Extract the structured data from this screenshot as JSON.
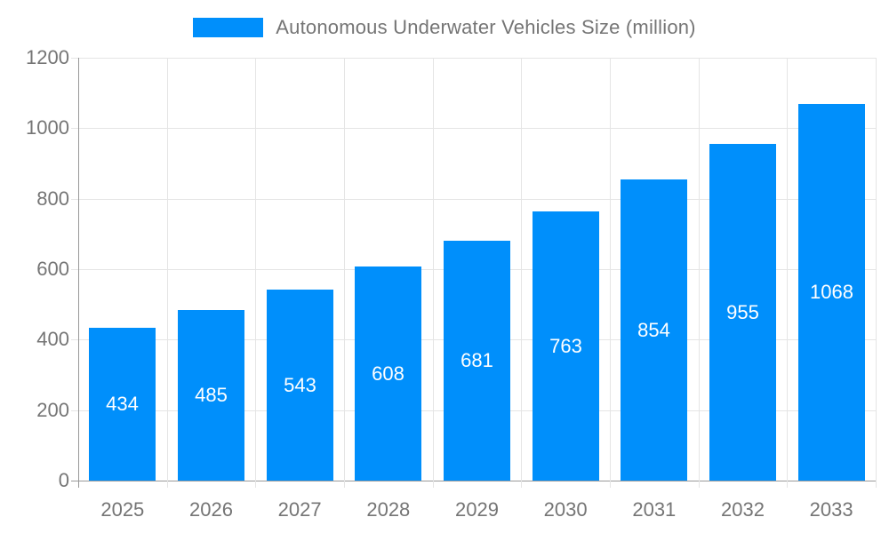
{
  "colors": {
    "bar": "#008FFB",
    "text": "#757575",
    "grid": "#e5e5e5",
    "axis": "#999999",
    "bar_label": "#ffffff",
    "background": "#ffffff"
  },
  "legend": {
    "position": "top",
    "swatch_color": "#008FFB"
  },
  "chart_data": {
    "type": "bar",
    "title": "Autonomous Underwater Vehicles Size (million)",
    "categories": [
      "2025",
      "2026",
      "2027",
      "2028",
      "2029",
      "2030",
      "2031",
      "2032",
      "2033"
    ],
    "series": [
      {
        "name": "Autonomous Underwater Vehicles Size (million)",
        "values": [
          434,
          485,
          543,
          608,
          681,
          763,
          854,
          955,
          1068
        ]
      }
    ],
    "xlabel": "",
    "ylabel": "",
    "ylim": [
      0,
      1200
    ],
    "yticks": [
      0,
      200,
      400,
      600,
      800,
      1000,
      1200
    ],
    "grid": true,
    "legend_position": "top",
    "value_labels": "inside-center"
  }
}
